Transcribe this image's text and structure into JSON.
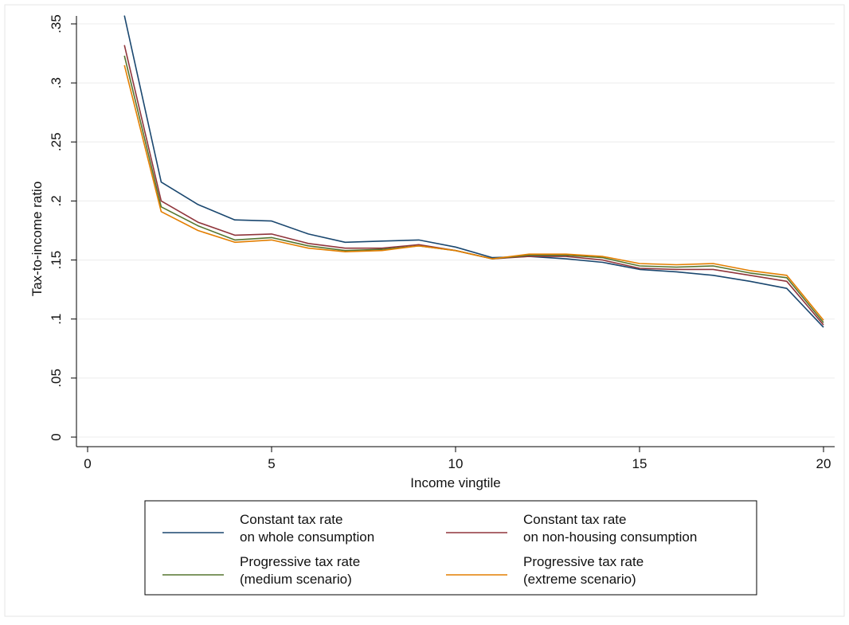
{
  "chart_data": {
    "type": "line",
    "title": "",
    "xlabel": "Income vingtile",
    "ylabel": "Tax-to-income ratio",
    "xlim": [
      0,
      20
    ],
    "ylim": [
      0,
      0.35
    ],
    "x_ticks": [
      0,
      5,
      10,
      15,
      20
    ],
    "x_tick_labels": [
      "0",
      "5",
      "10",
      "15",
      "20"
    ],
    "y_ticks": [
      0,
      0.05,
      0.1,
      0.15,
      0.2,
      0.25,
      0.3,
      0.35
    ],
    "y_tick_labels": [
      "0",
      ".05",
      ".1",
      ".15",
      ".2",
      ".25",
      ".3",
      ".35"
    ],
    "grid": "horizontal",
    "legend_position": "bottom",
    "x": [
      1,
      2,
      3,
      4,
      5,
      6,
      7,
      8,
      9,
      10,
      11,
      12,
      13,
      14,
      15,
      16,
      17,
      18,
      19,
      20
    ],
    "series": [
      {
        "name_lines": [
          "Constant tax rate",
          "on whole consumption"
        ],
        "color": "#1a476f",
        "values": [
          0.357,
          0.216,
          0.197,
          0.184,
          0.183,
          0.172,
          0.165,
          0.166,
          0.167,
          0.161,
          0.152,
          0.153,
          0.151,
          0.148,
          0.142,
          0.14,
          0.137,
          0.132,
          0.126,
          0.093
        ]
      },
      {
        "name_lines": [
          "Constant tax rate",
          "on non-housing consumption"
        ],
        "color": "#90353b",
        "values": [
          0.332,
          0.2,
          0.182,
          0.171,
          0.172,
          0.164,
          0.16,
          0.16,
          0.163,
          0.158,
          0.151,
          0.153,
          0.153,
          0.15,
          0.143,
          0.142,
          0.142,
          0.137,
          0.132,
          0.095
        ]
      },
      {
        "name_lines": [
          "Progressive tax rate",
          "(medium scenario)"
        ],
        "color": "#55752f",
        "values": [
          0.323,
          0.195,
          0.179,
          0.167,
          0.169,
          0.162,
          0.158,
          0.159,
          0.162,
          0.158,
          0.151,
          0.154,
          0.154,
          0.152,
          0.145,
          0.144,
          0.145,
          0.139,
          0.135,
          0.097
        ]
      },
      {
        "name_lines": [
          "Progressive tax rate",
          "(extreme scenario)"
        ],
        "color": "#e37e00",
        "values": [
          0.315,
          0.191,
          0.175,
          0.165,
          0.167,
          0.16,
          0.157,
          0.158,
          0.162,
          0.158,
          0.151,
          0.155,
          0.155,
          0.153,
          0.147,
          0.146,
          0.147,
          0.141,
          0.137,
          0.099
        ]
      }
    ]
  }
}
